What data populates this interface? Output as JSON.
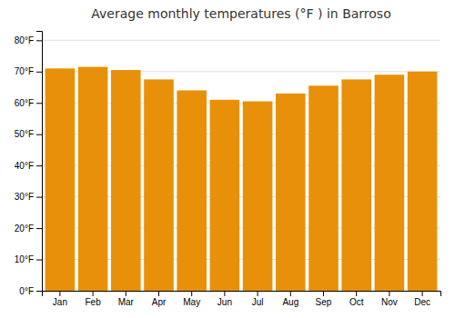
{
  "chart_data": {
    "type": "bar",
    "title": "Average monthly temperatures (°F ) in Barroso",
    "categories": [
      "Jan",
      "Feb",
      "Mar",
      "Apr",
      "May",
      "Jun",
      "Jul",
      "Aug",
      "Sep",
      "Oct",
      "Nov",
      "Dec"
    ],
    "values": [
      71.0,
      71.5,
      70.5,
      67.5,
      64.0,
      61.0,
      60.5,
      63.0,
      65.5,
      67.5,
      69.0,
      70.0
    ],
    "color": "#E8900A",
    "ylim": [
      0,
      83
    ],
    "yticks": [
      {
        "value": 0,
        "label": "0°F"
      },
      {
        "value": 10,
        "label": "10°F"
      },
      {
        "value": 20,
        "label": "20°F"
      },
      {
        "value": 30,
        "label": "30°F"
      },
      {
        "value": 40,
        "label": "40°F"
      },
      {
        "value": 50,
        "label": "50°F"
      },
      {
        "value": 60,
        "label": "60°F"
      },
      {
        "value": 70,
        "label": "70°F"
      },
      {
        "value": 80,
        "label": "80°F"
      }
    ],
    "grid": true
  }
}
